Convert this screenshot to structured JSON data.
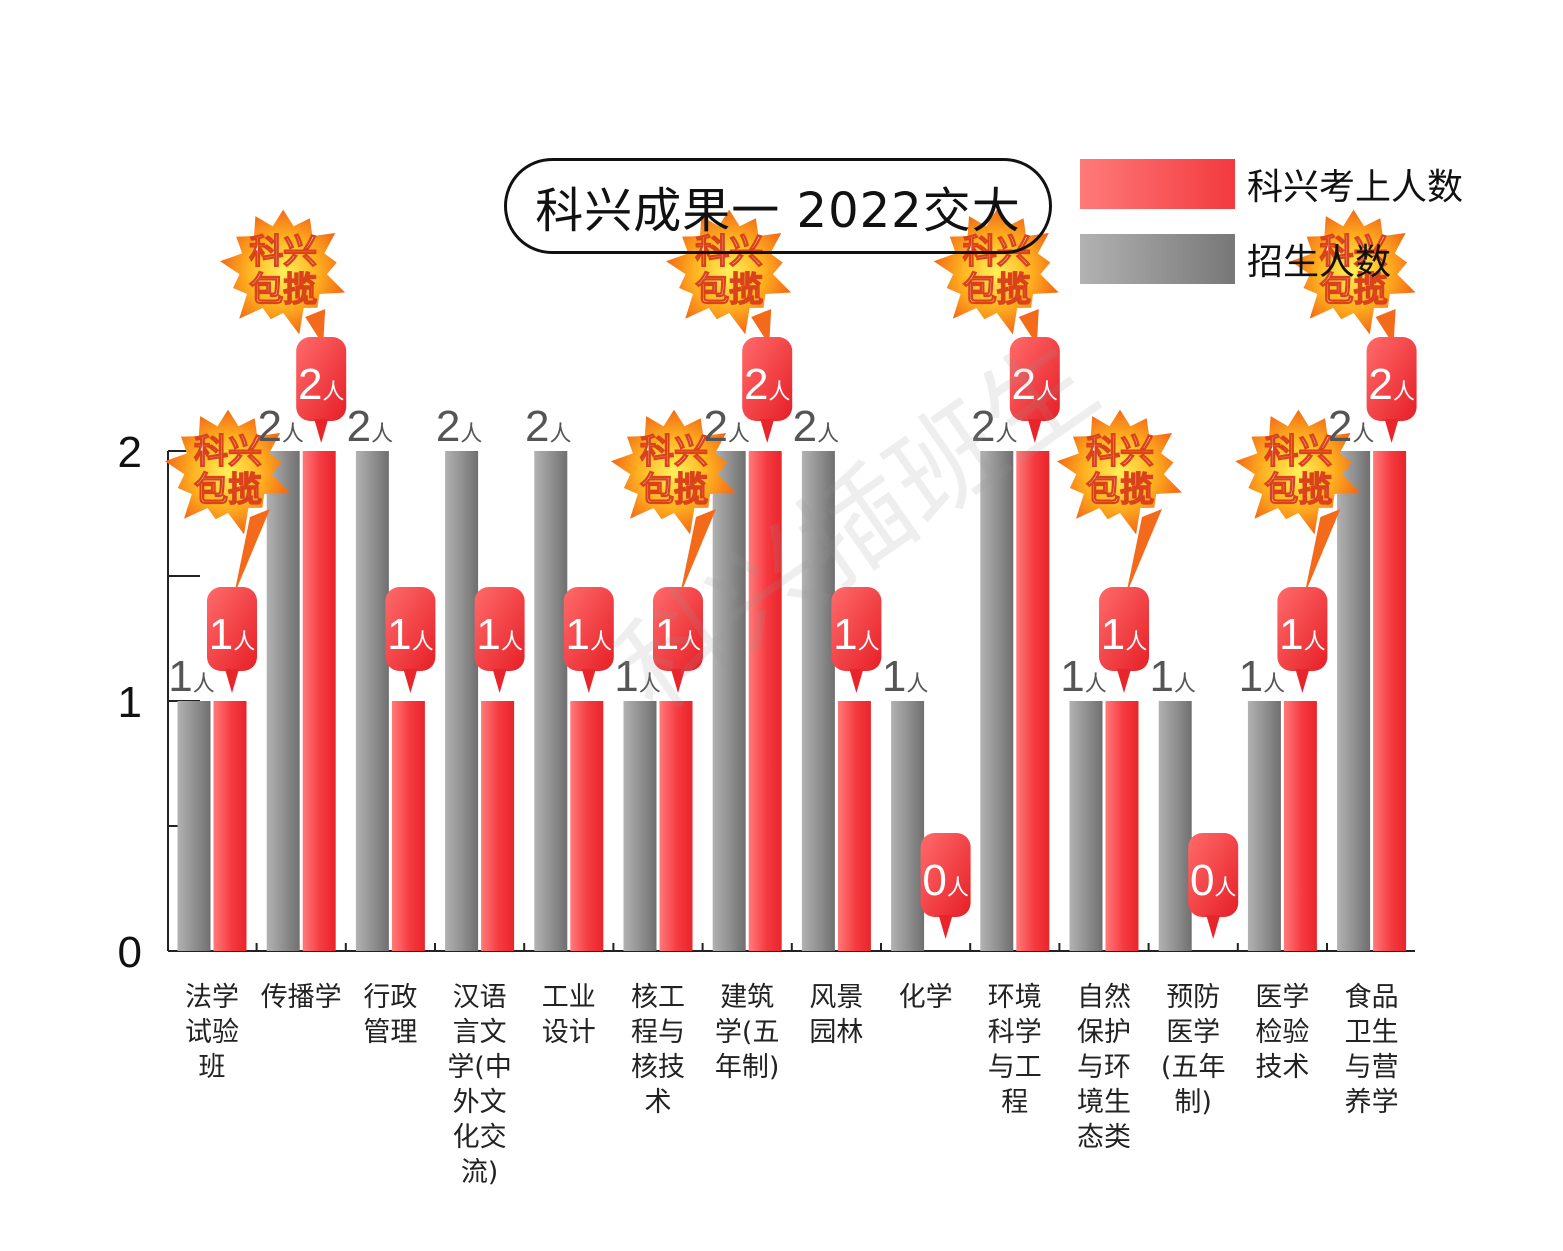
{
  "chart_data": {
    "type": "bar",
    "title": "科兴成果一 2022交大",
    "categories": [
      [
        "法学",
        "试验",
        "班"
      ],
      [
        "传播学"
      ],
      [
        "行政",
        "管理"
      ],
      [
        "汉语",
        "言文",
        "学(中",
        "外文",
        "化交",
        "流)"
      ],
      [
        "工业",
        "设计"
      ],
      [
        "核工",
        "程与",
        "核技",
        "术"
      ],
      [
        "建筑",
        "学(五",
        "年制)"
      ],
      [
        "风景",
        "园林"
      ],
      [
        "化学"
      ],
      [
        "环境",
        "科学",
        "与工",
        "程"
      ],
      [
        "自然",
        "保护",
        "与环",
        "境生",
        "态类"
      ],
      [
        "预防",
        "医学",
        "(五年",
        "制)"
      ],
      [
        "医学",
        "检验",
        "技术"
      ],
      [
        "食品",
        "卫生",
        "与营",
        "养学"
      ]
    ],
    "series": [
      {
        "name": "招生人数",
        "values": [
          1,
          2,
          2,
          2,
          2,
          1,
          2,
          2,
          1,
          2,
          1,
          1,
          1,
          2
        ],
        "color": "#8c8c8c"
      },
      {
        "name": "科兴考上人数",
        "values": [
          1,
          2,
          1,
          1,
          1,
          1,
          2,
          1,
          0,
          2,
          1,
          0,
          1,
          2
        ],
        "color": "#f23a3f"
      }
    ],
    "unit_suffix": "人",
    "badge_text": [
      "科兴",
      "包揽"
    ],
    "badge_categories": [
      0,
      1,
      5,
      6,
      9,
      10,
      12,
      13
    ],
    "ylim": [
      0,
      2
    ],
    "yticks": [
      0,
      1,
      2
    ]
  },
  "legend": [
    {
      "label": "科兴考上人数",
      "color": "#f23a3f"
    },
    {
      "label": "招生人数",
      "color": "#8c8c8c"
    }
  ],
  "watermark": "科兴插班生"
}
